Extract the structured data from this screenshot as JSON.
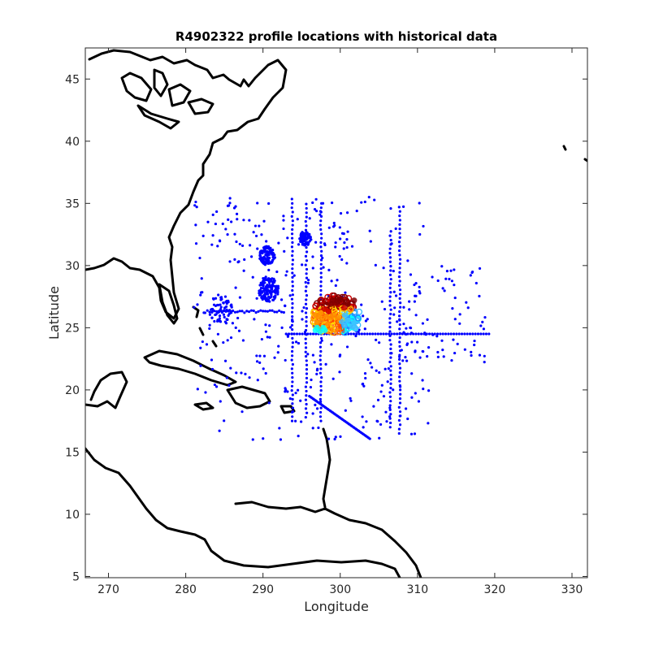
{
  "chart_data": {
    "type": "scatter",
    "title": "R4902322 profile locations with historical data",
    "xlabel": "Longitude",
    "ylabel": "Latitude",
    "xlim": [
      267,
      332
    ],
    "ylim": [
      4.9,
      47.5
    ],
    "xticks": [
      "270",
      "280",
      "290",
      "300",
      "310",
      "320",
      "330"
    ],
    "yticks": [
      "5",
      "10",
      "15",
      "20",
      "25",
      "30",
      "35",
      "40",
      "45"
    ],
    "grid": false,
    "historical_color": "#0000ff",
    "float_colormap": [
      "#00ffff",
      "#40c0ff",
      "#1e90ff",
      "#ffd700",
      "#ff8c00",
      "#ff4500",
      "#cc0000",
      "#800000"
    ],
    "coast_color": "#000000",
    "series": [
      {
        "points": [
          [
            300.5,
            26.6
          ],
          [
            301.0,
            26.9
          ],
          [
            301.8,
            27.2
          ],
          [
            299.5,
            27.0
          ],
          [
            300.0,
            27.3
          ],
          [
            298.8,
            26.9
          ],
          [
            299.0,
            27.2
          ],
          [
            298.5,
            26.3
          ],
          [
            297.5,
            26.2
          ],
          [
            298.0,
            26.5
          ],
          [
            297.2,
            25.9
          ],
          [
            297.6,
            25.6
          ],
          [
            298.2,
            25.9
          ],
          [
            296.8,
            26.0
          ],
          [
            298.8,
            25.8
          ],
          [
            299.2,
            26.0
          ],
          [
            297.0,
            25.4
          ],
          [
            297.8,
            25.0
          ],
          [
            298.4,
            25.3
          ],
          [
            300.2,
            25.5
          ],
          [
            301.0,
            25.6
          ],
          [
            300.6,
            25.2
          ],
          [
            301.5,
            25.1
          ],
          [
            302.0,
            24.9
          ],
          [
            301.8,
            25.4
          ],
          [
            299.8,
            25.8
          ],
          [
            300.6,
            26.0
          ],
          [
            296.8,
            24.8
          ],
          [
            297.4,
            24.7
          ],
          [
            297.0,
            25.0
          ],
          [
            298.0,
            24.8
          ]
        ]
      }
    ]
  }
}
